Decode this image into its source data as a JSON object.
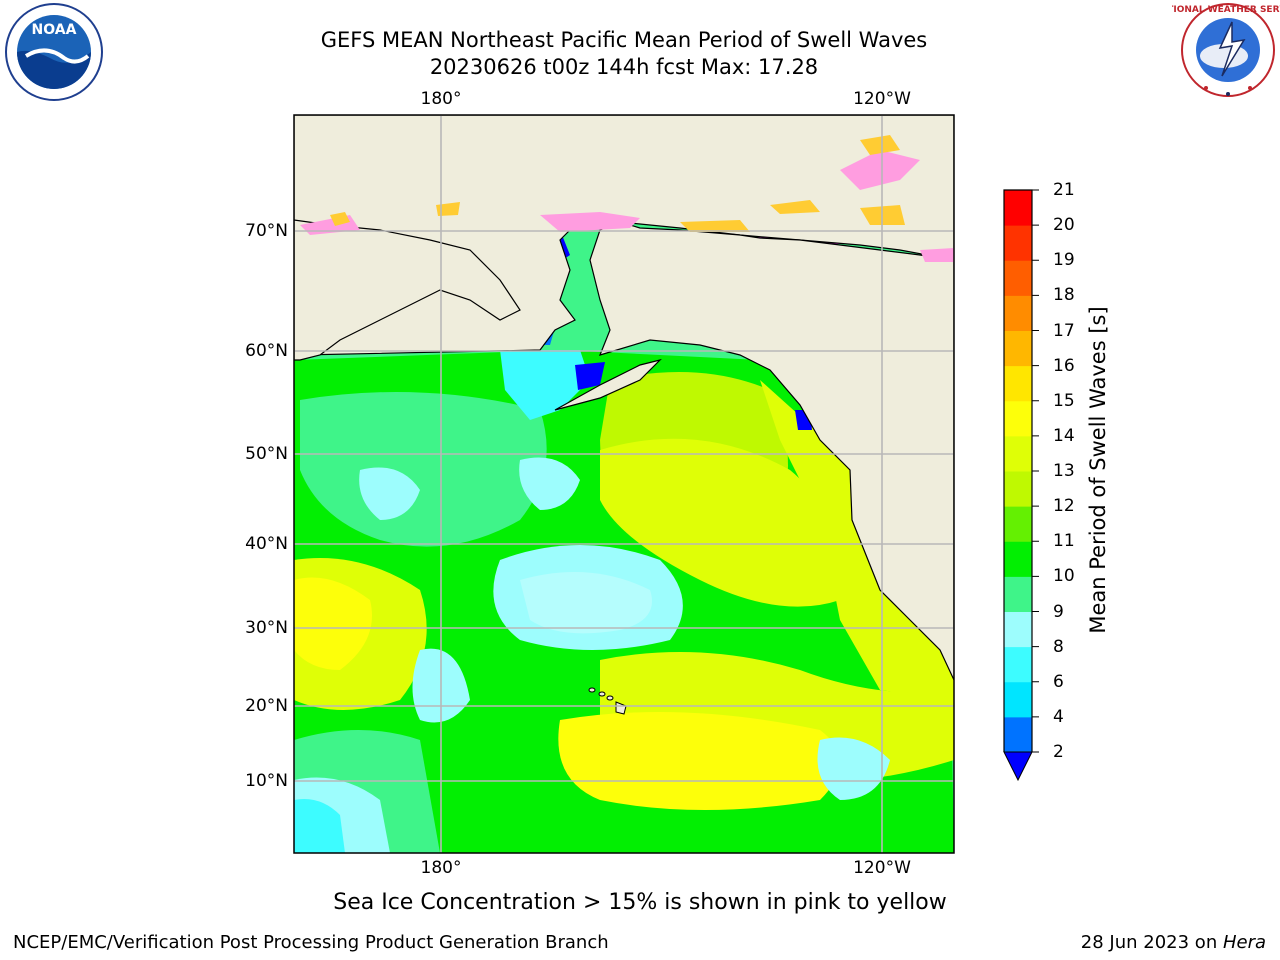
{
  "title": {
    "line1": "GEFS MEAN Northeast Pacific Mean Period of Swell Waves",
    "line2": "20230626 t00z 144h fcst   Max: 17.28"
  },
  "map": {
    "lon_ticks": [
      "180°",
      "120°W"
    ],
    "lat_ticks": [
      "70°N",
      "60°N",
      "50°N",
      "40°N",
      "30°N",
      "20°N",
      "10°N"
    ],
    "colors": {
      "land": "#efeddc",
      "coast": "#000000",
      "grid": "#b8b8b8"
    }
  },
  "colorbar": {
    "label": "Mean Period of Swell Waves [s]",
    "ticks": [
      "2",
      "4",
      "6",
      "8",
      "9",
      "10",
      "11",
      "12",
      "13",
      "14",
      "15",
      "16",
      "17",
      "18",
      "19",
      "20",
      "21"
    ],
    "colors": [
      "#0073ff",
      "#00e5ff",
      "#3dfcff",
      "#9dfdfd",
      "#3ff489",
      "#02ef02",
      "#64f002",
      "#bff901",
      "#dfff06",
      "#fdff0a",
      "#ffe600",
      "#ffb700",
      "#ff8c00",
      "#ff5e00",
      "#ff3300",
      "#ff0000"
    ],
    "under_color": "#0000ff"
  },
  "note": "Sea Ice Concentration > 15% is shown in pink to yellow",
  "footer": {
    "left": "NCEP/EMC/Verification Post Processing Product Generation Branch",
    "date": "28 Jun 2023 on ",
    "host": "Hera"
  },
  "logos": {
    "noaa_text": "NOAA",
    "nws_text": "NATIONAL WEATHER SERVICE"
  }
}
